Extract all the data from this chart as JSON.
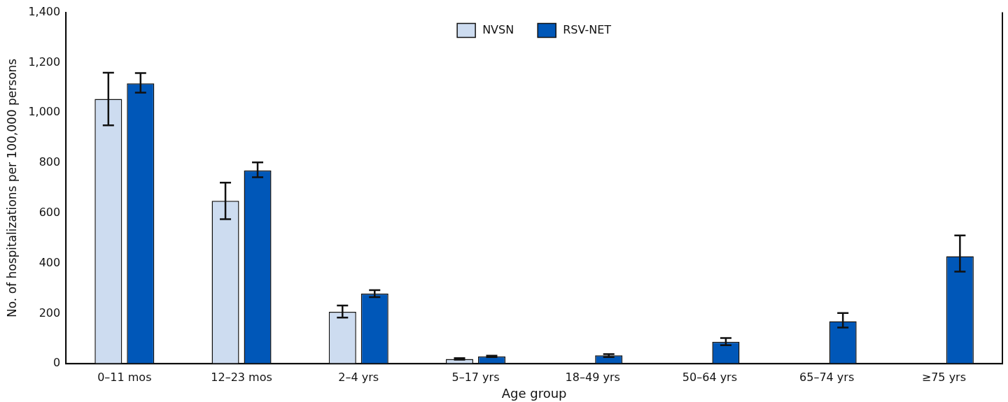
{
  "chart_data": {
    "type": "bar",
    "xlabel": "Age group",
    "ylabel": "No. of hospitalizations per 100,000 persons",
    "categories": [
      "0–11 mos",
      "12–23 mos",
      "2–4 yrs",
      "5–17 yrs",
      "18–49 yrs",
      "50–64 yrs",
      "65–74 yrs",
      "≥75 yrs"
    ],
    "series": [
      {
        "name": "NVSN",
        "color": "#cddcf0",
        "values": [
          1055,
          649,
          207,
          19,
          null,
          null,
          null,
          null
        ],
        "errors": [
          [
            950,
            1159
          ],
          [
            576,
            721
          ],
          [
            184,
            232
          ],
          [
            16,
            22
          ],
          null,
          null,
          null,
          null
        ]
      },
      {
        "name": "RSV-NET",
        "color": "#0057b8",
        "values": [
          1117,
          770,
          279,
          29,
          33,
          87,
          169,
          428
        ],
        "errors": [
          [
            1080,
            1158
          ],
          [
            743,
            802
          ],
          [
            265,
            293
          ],
          [
            26,
            32
          ],
          [
            26,
            38
          ],
          [
            74,
            102
          ],
          [
            144,
            202
          ],
          [
            367,
            511
          ]
        ]
      }
    ],
    "ylim": [
      0,
      1400
    ],
    "yticks": [
      0,
      200,
      400,
      600,
      800,
      {
        "value": 1000,
        "label": "1,000"
      },
      {
        "value": 1200,
        "label": "1,200"
      },
      {
        "value": 1400,
        "label": "1,400"
      }
    ],
    "grid": false,
    "legend": "top"
  }
}
